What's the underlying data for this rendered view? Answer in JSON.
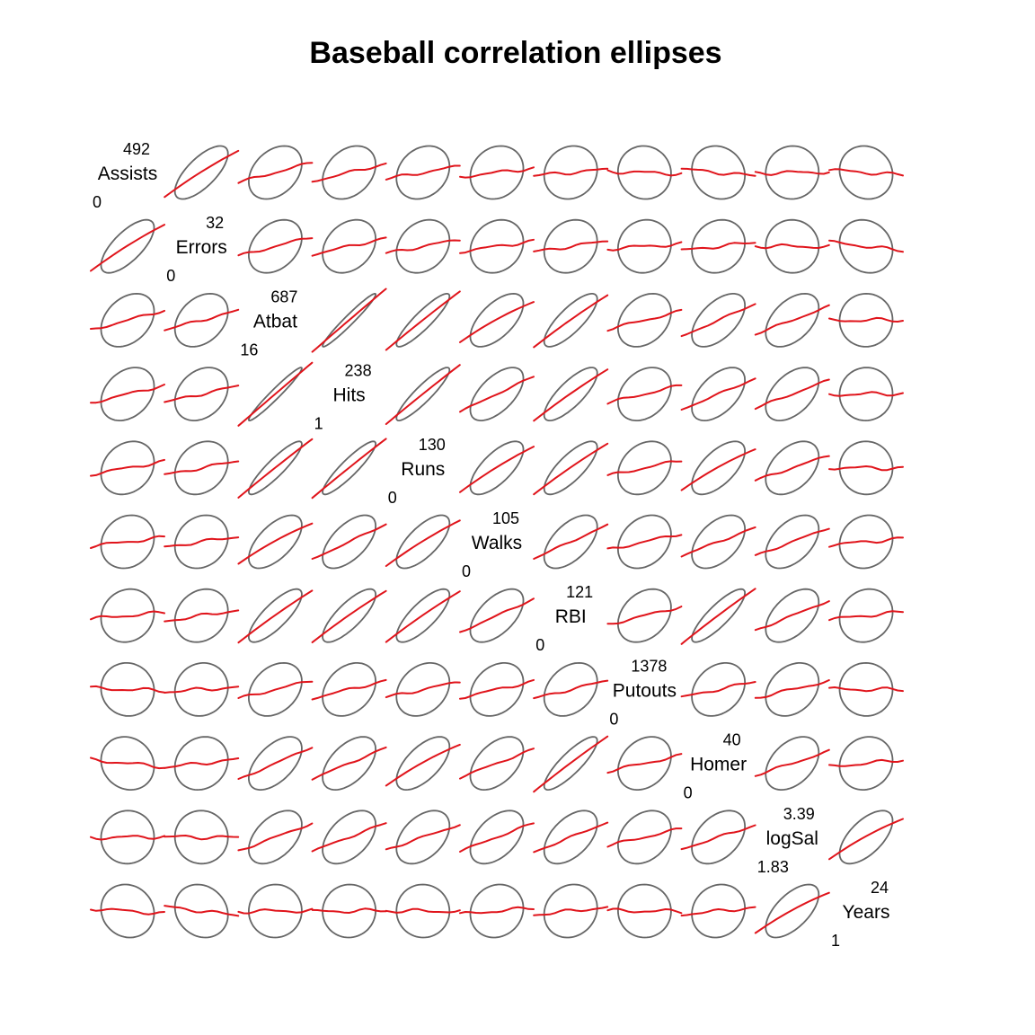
{
  "chart_data": {
    "type": "scatter",
    "title": "Baseball correlation ellipses",
    "variables": [
      {
        "name": "Assists",
        "max": "492",
        "min": "0"
      },
      {
        "name": "Errors",
        "max": "32",
        "min": "0"
      },
      {
        "name": "Atbat",
        "max": "687",
        "min": "16"
      },
      {
        "name": "Hits",
        "max": "238",
        "min": "1"
      },
      {
        "name": "Runs",
        "max": "130",
        "min": "0"
      },
      {
        "name": "Walks",
        "max": "105",
        "min": "0"
      },
      {
        "name": "RBI",
        "max": "121",
        "min": "0"
      },
      {
        "name": "Putouts",
        "max": "1378",
        "min": "0"
      },
      {
        "name": "Homer",
        "max": "40",
        "min": "0"
      },
      {
        "name": "logSal",
        "max": "3.39",
        "min": "1.83"
      },
      {
        "name": "Years",
        "max": "24",
        "min": "1"
      }
    ],
    "correlations": [
      [
        1.0,
        0.71,
        0.34,
        0.3,
        0.22,
        0.15,
        0.11,
        -0.04,
        -0.12,
        0.02,
        -0.09
      ],
      [
        0.71,
        1.0,
        0.33,
        0.28,
        0.24,
        0.18,
        0.19,
        0.08,
        0.14,
        -0.01,
        -0.15
      ],
      [
        0.34,
        0.33,
        1.0,
        0.97,
        0.9,
        0.62,
        0.8,
        0.31,
        0.56,
        0.47,
        0.01
      ],
      [
        0.3,
        0.28,
        0.97,
        1.0,
        0.91,
        0.6,
        0.79,
        0.3,
        0.53,
        0.48,
        0.02
      ],
      [
        0.22,
        0.24,
        0.9,
        0.91,
        1.0,
        0.7,
        0.78,
        0.27,
        0.63,
        0.43,
        -0.01
      ],
      [
        0.15,
        0.18,
        0.62,
        0.6,
        0.7,
        1.0,
        0.57,
        0.28,
        0.48,
        0.48,
        0.11
      ],
      [
        0.11,
        0.19,
        0.8,
        0.79,
        0.78,
        0.57,
        1.0,
        0.31,
        0.85,
        0.51,
        0.13
      ],
      [
        -0.04,
        0.08,
        0.31,
        0.3,
        0.27,
        0.28,
        0.31,
        1.0,
        0.27,
        0.29,
        -0.01
      ],
      [
        -0.12,
        0.14,
        0.56,
        0.53,
        0.63,
        0.48,
        0.85,
        0.27,
        1.0,
        0.41,
        0.12
      ],
      [
        0.02,
        -0.01,
        0.47,
        0.48,
        0.43,
        0.48,
        0.51,
        0.29,
        0.41,
        1.0,
        0.62
      ],
      [
        -0.09,
        -0.15,
        0.01,
        0.02,
        -0.01,
        0.11,
        0.13,
        -0.01,
        0.12,
        0.62,
        1.0
      ]
    ]
  }
}
